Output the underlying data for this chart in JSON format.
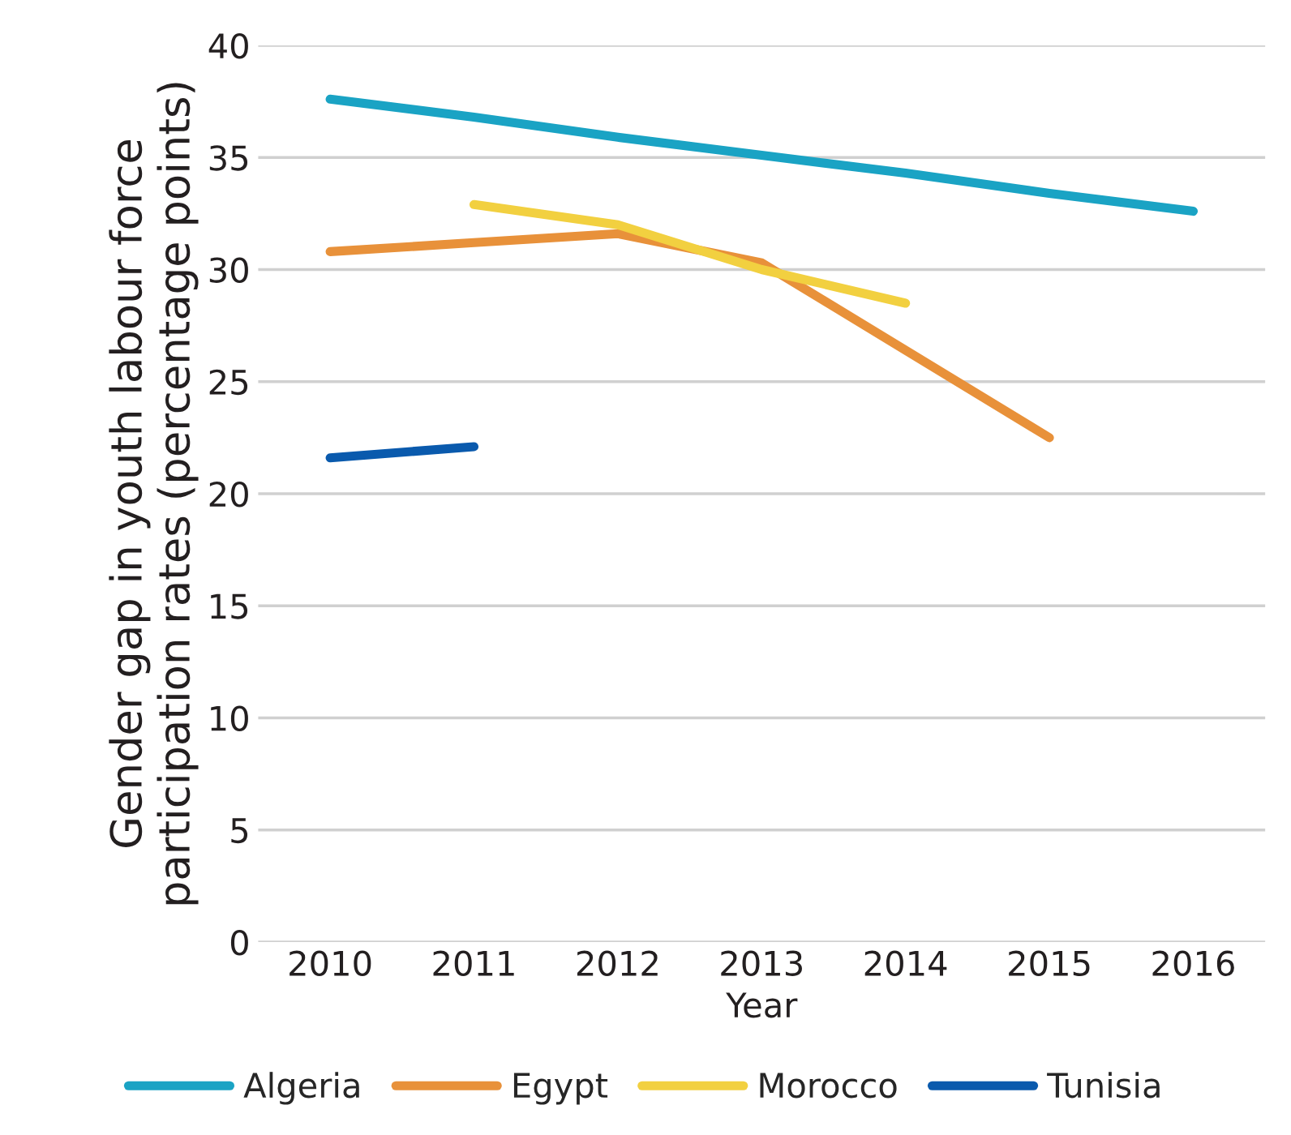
{
  "chart_data": {
    "type": "line",
    "xlabel": "Year",
    "ylabel": "Gender gap in youth labour force\nparticipation rates (percentage points)",
    "categories": [
      "2010",
      "2011",
      "2012",
      "2013",
      "2014",
      "2015",
      "2016"
    ],
    "series": [
      {
        "name": "Algeria",
        "color": "#1aa3c4",
        "values": [
          37.6,
          36.8,
          35.9,
          35.1,
          34.3,
          33.4,
          32.6
        ]
      },
      {
        "name": "Egypt",
        "color": "#e8913a",
        "values": [
          30.8,
          31.2,
          31.6,
          30.3,
          26.4,
          22.5,
          null
        ]
      },
      {
        "name": "Morocco",
        "color": "#f2d040",
        "values": [
          null,
          32.9,
          32.0,
          30.0,
          28.5,
          null,
          null
        ]
      },
      {
        "name": "Tunisia",
        "color": "#0a5aad",
        "values": [
          21.6,
          22.1,
          null,
          null,
          null,
          null,
          null
        ]
      }
    ],
    "ylim": [
      0,
      40
    ],
    "yticks": [
      0,
      5,
      10,
      15,
      20,
      25,
      30,
      35,
      40
    ],
    "grid": "y",
    "legend": "bottom",
    "line_style": "solid",
    "marker": "none"
  }
}
